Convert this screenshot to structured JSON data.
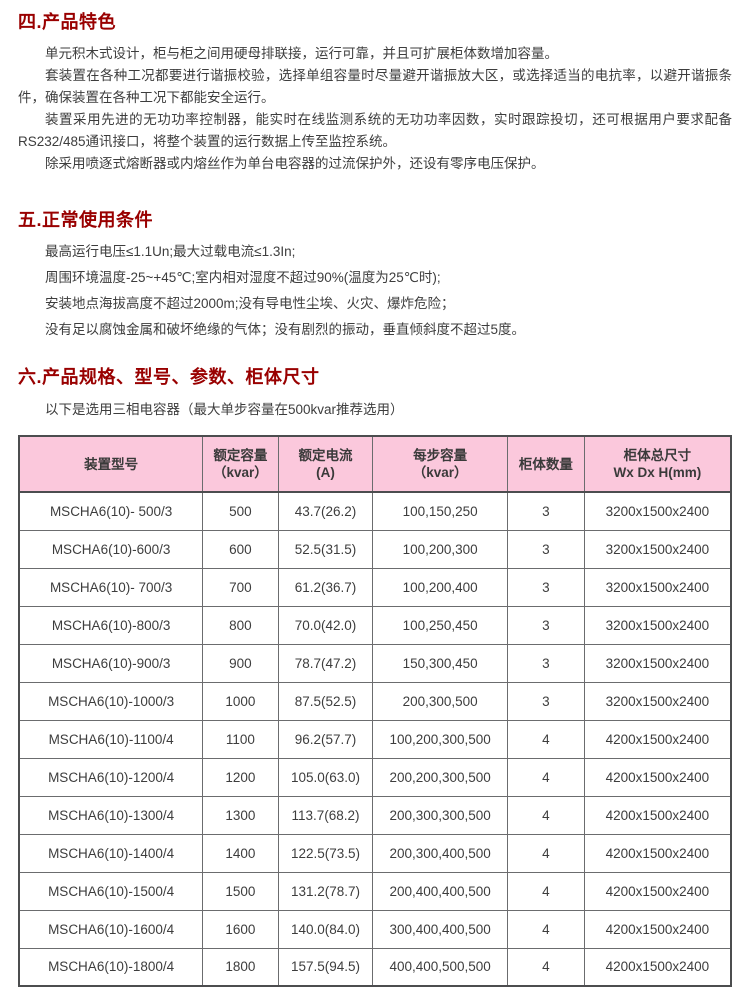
{
  "colors": {
    "heading_red": "#990000",
    "table_header_pink": "#fbc8dc",
    "body_text": "#3d3d3d",
    "table_border_dark": "#4c4d4f",
    "table_border_inner": "#6b6c6e"
  },
  "section4": {
    "heading": "四.产品特色",
    "paragraphs": [
      "单元积木式设计，柜与柜之间用硬母排联接，运行可靠，并且可扩展柜体数增加容量。",
      "套装置在各种工况都要进行谐振校验，选择单组容量时尽量避开谐振放大区，或选择适当的电抗率，以避开谐振条件，确保装置在各种工况下都能安全运行。",
      "装置采用先进的无功功率控制器，能实时在线监测系统的无功功率因数，实时跟踪投切，还可根据用户要求配备RS232/485通讯接口，将整个装置的运行数据上传至监控系统。",
      "除采用喷逐式熔断器或内熔丝作为单台电容器的过流保护外，还设有零序电压保护。"
    ]
  },
  "section5": {
    "heading": "五.正常使用条件",
    "conditions": [
      "最高运行电压≤1.1Un;最大过载电流≤1.3In;",
      "周围环境温度-25~+45℃;室内相对湿度不超过90%(温度为25℃时);",
      "安装地点海拔高度不超过2000m;没有导电性尘埃、火灾、爆炸危险；",
      "没有足以腐蚀金属和破坏绝缘的气体；没有剧烈的振动，垂直倾斜度不超过5度。"
    ]
  },
  "section6": {
    "heading": "六.产品规格、型号、参数、柜体尺寸",
    "subtitle": "以下是选用三相电容器（最大单步容量在500kvar推荐选用）",
    "table": {
      "headers": [
        {
          "line1": "装置型号",
          "line2": ""
        },
        {
          "line1": "额定容量",
          "line2": "（kvar）"
        },
        {
          "line1": "额定电流",
          "line2": "(A)"
        },
        {
          "line1": "每步容量",
          "line2": "（kvar）"
        },
        {
          "line1": "柜体数量",
          "line2": ""
        },
        {
          "line1": "柜体总尺寸",
          "line2": "Wx Dx H(mm)"
        }
      ],
      "rows": [
        [
          "MSCHA6(10)- 500/3",
          "500",
          "43.7(26.2)",
          "100,150,250",
          "3",
          "3200x1500x2400"
        ],
        [
          "MSCHA6(10)-600/3",
          "600",
          "52.5(31.5)",
          "100,200,300",
          "3",
          "3200x1500x2400"
        ],
        [
          "MSCHA6(10)- 700/3",
          "700",
          "61.2(36.7)",
          "100,200,400",
          "3",
          "3200x1500x2400"
        ],
        [
          "MSCHA6(10)-800/3",
          "800",
          "70.0(42.0)",
          "100,250,450",
          "3",
          "3200x1500x2400"
        ],
        [
          "MSCHA6(10)-900/3",
          "900",
          "78.7(47.2)",
          "150,300,450",
          "3",
          "3200x1500x2400"
        ],
        [
          "MSCHA6(10)-1000/3",
          "1000",
          "87.5(52.5)",
          "200,300,500",
          "3",
          "3200x1500x2400"
        ],
        [
          "MSCHA6(10)-1100/4",
          "1100",
          "96.2(57.7)",
          "100,200,300,500",
          "4",
          "4200x1500x2400"
        ],
        [
          "MSCHA6(10)-1200/4",
          "1200",
          "105.0(63.0)",
          "200,200,300,500",
          "4",
          "4200x1500x2400"
        ],
        [
          "MSCHA6(10)-1300/4",
          "1300",
          "113.7(68.2)",
          "200,300,300,500",
          "4",
          "4200x1500x2400"
        ],
        [
          "MSCHA6(10)-1400/4",
          "1400",
          "122.5(73.5)",
          "200,300,400,500",
          "4",
          "4200x1500x2400"
        ],
        [
          "MSCHA6(10)-1500/4",
          "1500",
          "131.2(78.7)",
          "200,400,400,500",
          "4",
          "4200x1500x2400"
        ],
        [
          "MSCHA6(10)-1600/4",
          "1600",
          "140.0(84.0)",
          "300,400,400,500",
          "4",
          "4200x1500x2400"
        ],
        [
          "MSCHA6(10)-1800/4",
          "1800",
          "157.5(94.5)",
          "400,400,500,500",
          "4",
          "4200x1500x2400"
        ]
      ]
    }
  }
}
